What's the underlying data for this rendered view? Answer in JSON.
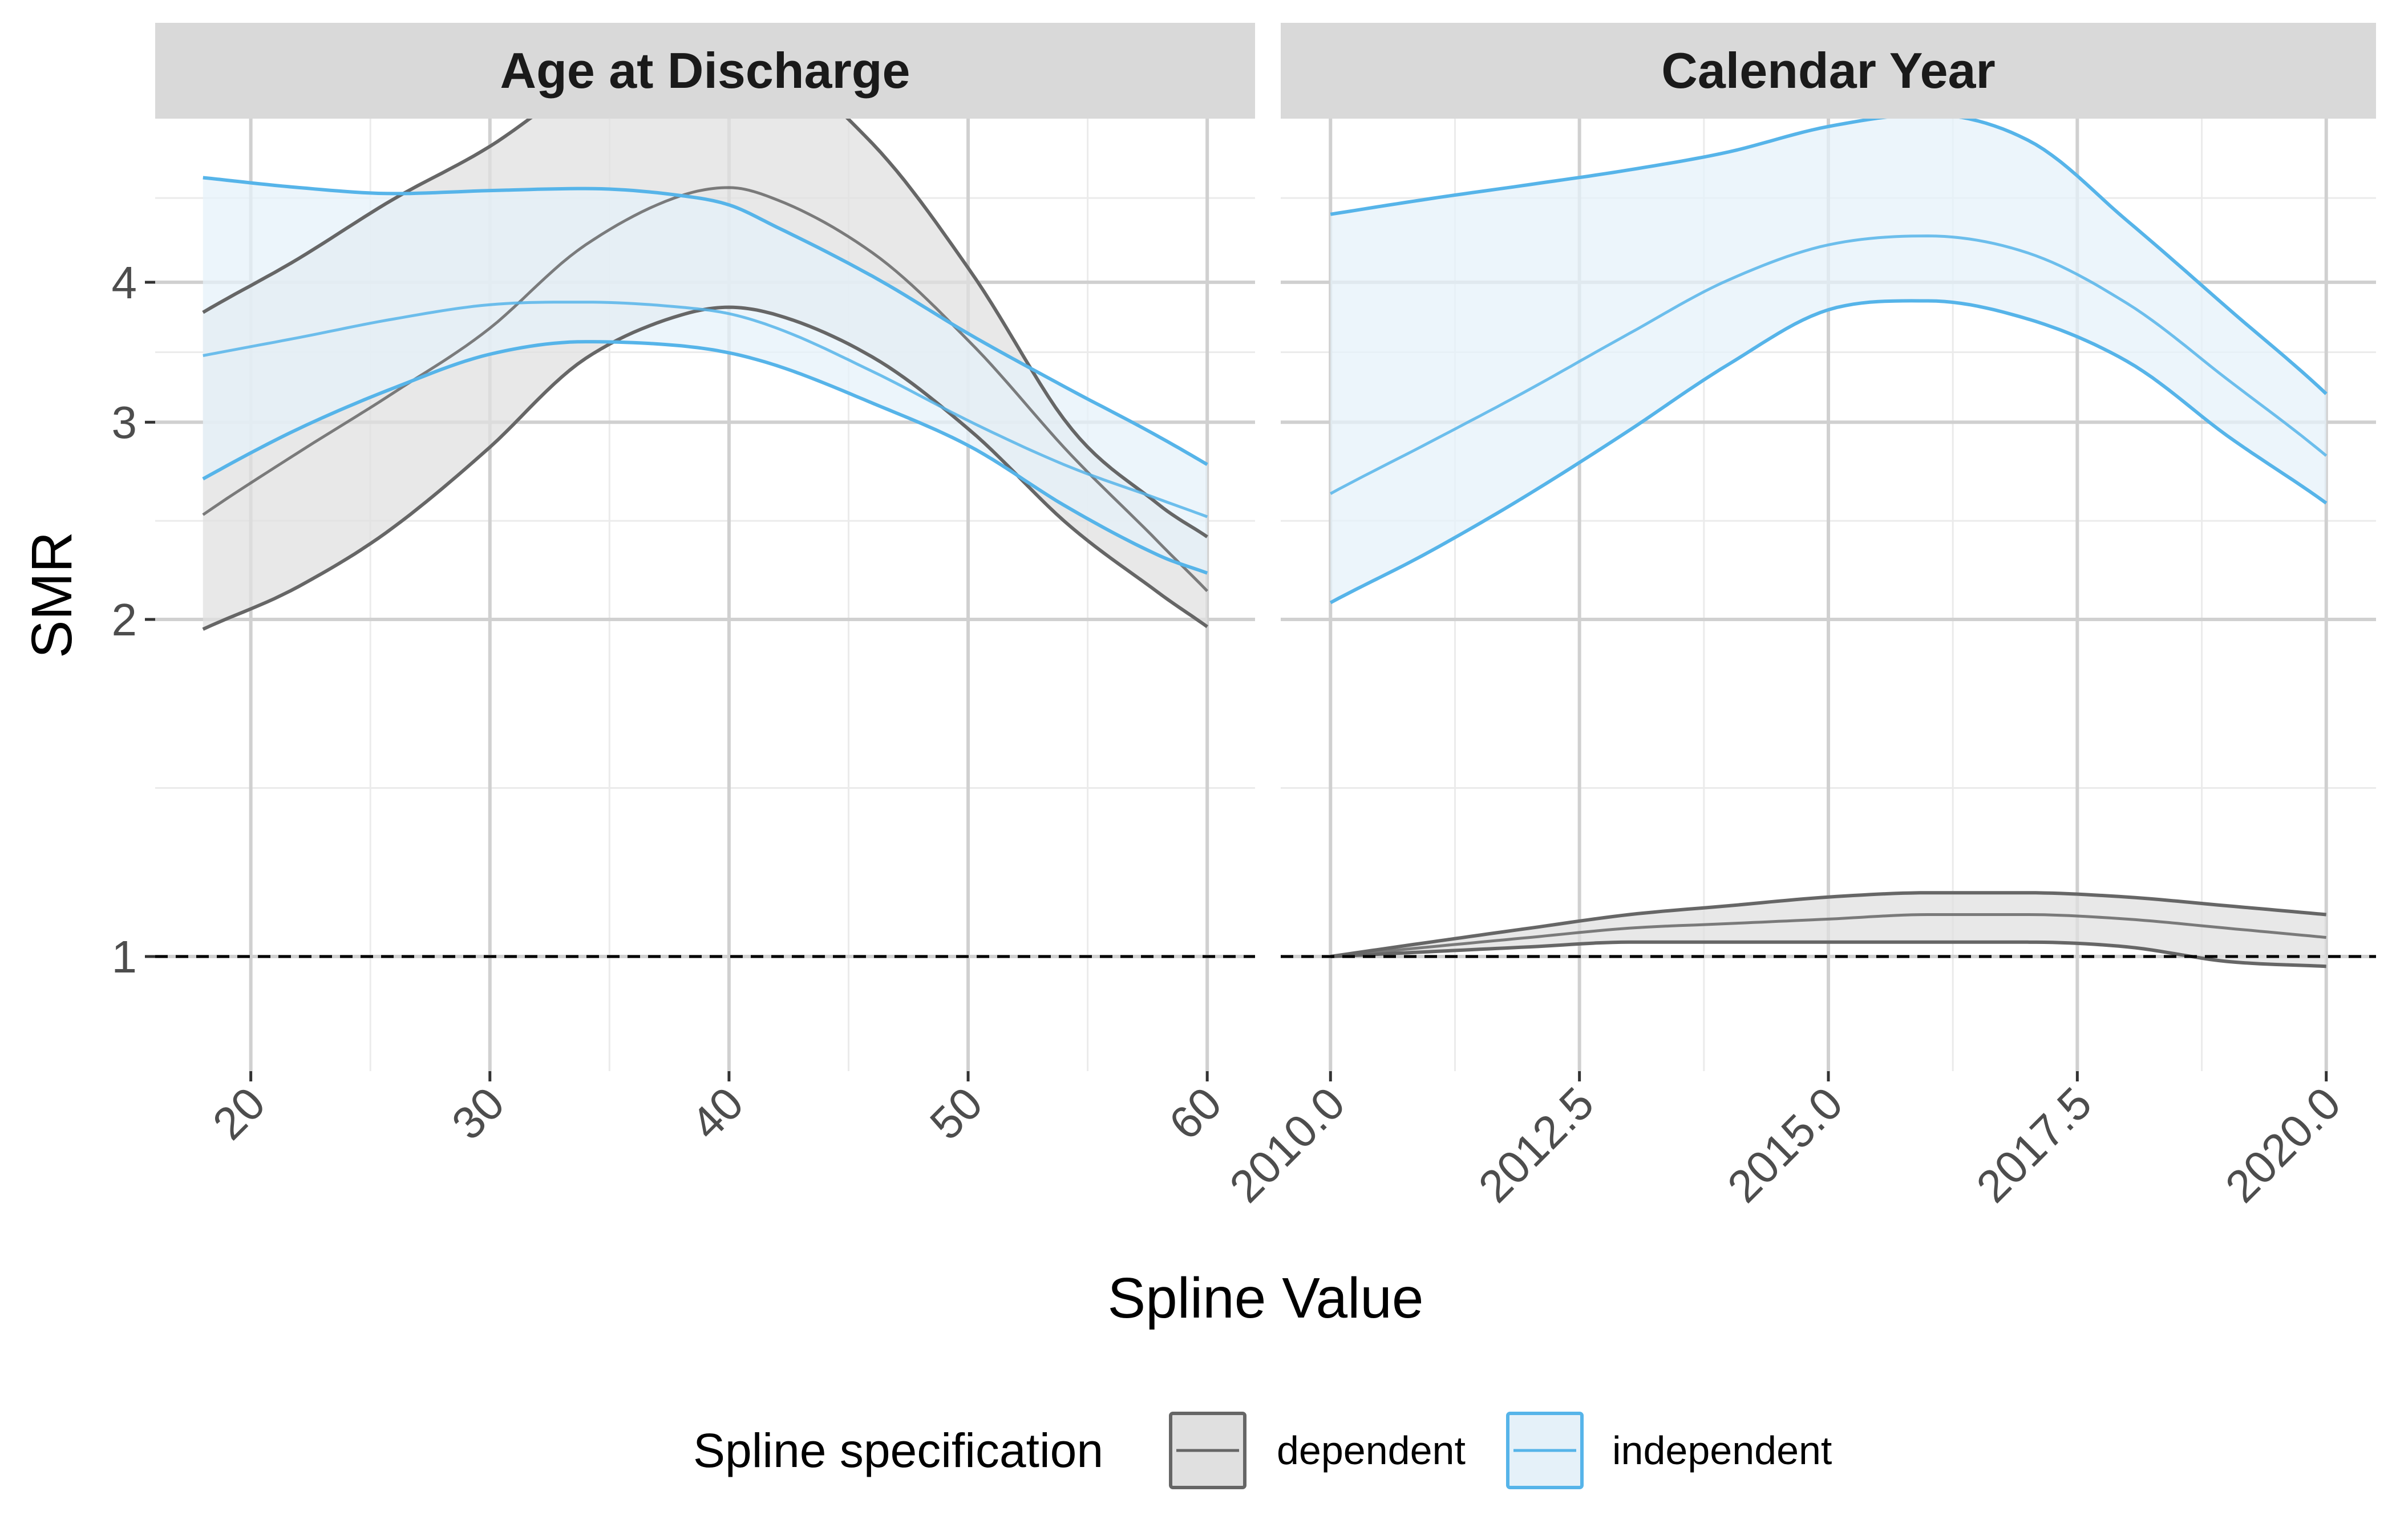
{
  "chart_data": {
    "type": "line",
    "xlabel": "Spline Value",
    "ylabel": "SMR",
    "y_scale": "log",
    "ylim": [
      0.79,
      5.6
    ],
    "y_ticks": [
      1,
      2,
      3,
      4
    ],
    "y_tick_labels": [
      "1",
      "2",
      "3",
      "4"
    ],
    "reference_line": {
      "y": 1,
      "style": "dashed",
      "color": "#000000"
    },
    "grid": true,
    "legend": {
      "title": "Spline specification",
      "position": "bottom",
      "entries": [
        {
          "label": "dependent",
          "line_color": "#666666",
          "fill_color": "#e0e0e0"
        },
        {
          "label": "independent",
          "line_color": "#56b4e9",
          "fill_color": "#e5f1f9"
        }
      ]
    },
    "panels": [
      {
        "title": "Age at Discharge",
        "xlim": [
          16,
          62
        ],
        "x_ticks": [
          20,
          30,
          40,
          50,
          60
        ],
        "x_tick_labels": [
          "20",
          "30",
          "40",
          "50",
          "60"
        ],
        "series": [
          {
            "name": "dependent",
            "x": [
              18,
              22,
              26,
              30,
              34,
              38,
              40,
              42,
              46,
              50,
              54,
              58,
              60
            ],
            "lower": [
              1.96,
              2.14,
              2.42,
              2.85,
              3.42,
              3.74,
              3.8,
              3.74,
              3.43,
              2.96,
              2.45,
              2.11,
              1.97
            ],
            "estimate": [
              2.48,
              2.82,
              3.19,
              3.64,
              4.32,
              4.78,
              4.86,
              4.74,
              4.25,
              3.55,
              2.85,
              2.34,
              2.12
            ],
            "upper": [
              3.76,
              4.2,
              4.75,
              5.29,
              6.04,
              6.55,
              6.6,
              6.31,
              5.32,
              4.12,
              3.02,
              2.53,
              2.37
            ]
          },
          {
            "name": "independent",
            "x": [
              18,
              22,
              26,
              30,
              34,
              38,
              40,
              42,
              46,
              50,
              54,
              58,
              60
            ],
            "lower": [
              2.67,
              2.96,
              3.22,
              3.45,
              3.54,
              3.51,
              3.46,
              3.37,
              3.12,
              2.86,
              2.53,
              2.28,
              2.2
            ],
            "estimate": [
              3.44,
              3.57,
              3.71,
              3.82,
              3.84,
              3.8,
              3.75,
              3.64,
              3.33,
              3.01,
              2.75,
              2.56,
              2.47
            ],
            "upper": [
              4.96,
              4.86,
              4.8,
              4.83,
              4.85,
              4.78,
              4.69,
              4.48,
              4.05,
              3.6,
              3.23,
              2.91,
              2.75
            ]
          }
        ]
      },
      {
        "title": "Calendar Year",
        "xlim": [
          2009.5,
          2020.5
        ],
        "x_ticks": [
          2010,
          2012.5,
          2015,
          2017.5,
          2020
        ],
        "x_tick_labels": [
          "2010.0",
          "2012.5",
          "2015.0",
          "2017.5",
          "2020.0"
        ],
        "series": [
          {
            "name": "dependent",
            "x": [
              2010,
              2011,
              2012,
              2013,
              2014,
              2015,
              2016,
              2017,
              2018,
              2019,
              2020
            ],
            "lower": [
              1.0,
              1.01,
              1.02,
              1.03,
              1.03,
              1.03,
              1.03,
              1.03,
              1.02,
              0.99,
              0.98
            ],
            "estimate": [
              1.0,
              1.02,
              1.04,
              1.06,
              1.07,
              1.08,
              1.09,
              1.09,
              1.08,
              1.06,
              1.04
            ],
            "upper": [
              1.0,
              1.03,
              1.06,
              1.09,
              1.11,
              1.13,
              1.14,
              1.14,
              1.13,
              1.11,
              1.09
            ]
          },
          {
            "name": "independent",
            "x": [
              2010,
              2011,
              2012,
              2013,
              2014,
              2015,
              2016,
              2017,
              2018,
              2019,
              2020
            ],
            "lower": [
              2.07,
              2.3,
              2.59,
              2.95,
              3.38,
              3.78,
              3.85,
              3.71,
              3.4,
              2.92,
              2.54
            ],
            "estimate": [
              2.59,
              2.88,
              3.21,
              3.6,
              4.02,
              4.32,
              4.4,
              4.25,
              3.83,
              3.28,
              2.8
            ],
            "upper": [
              4.6,
              4.75,
              4.89,
              5.04,
              5.23,
              5.51,
              5.65,
              5.36,
              4.54,
              3.8,
              3.18
            ]
          }
        ]
      }
    ]
  }
}
